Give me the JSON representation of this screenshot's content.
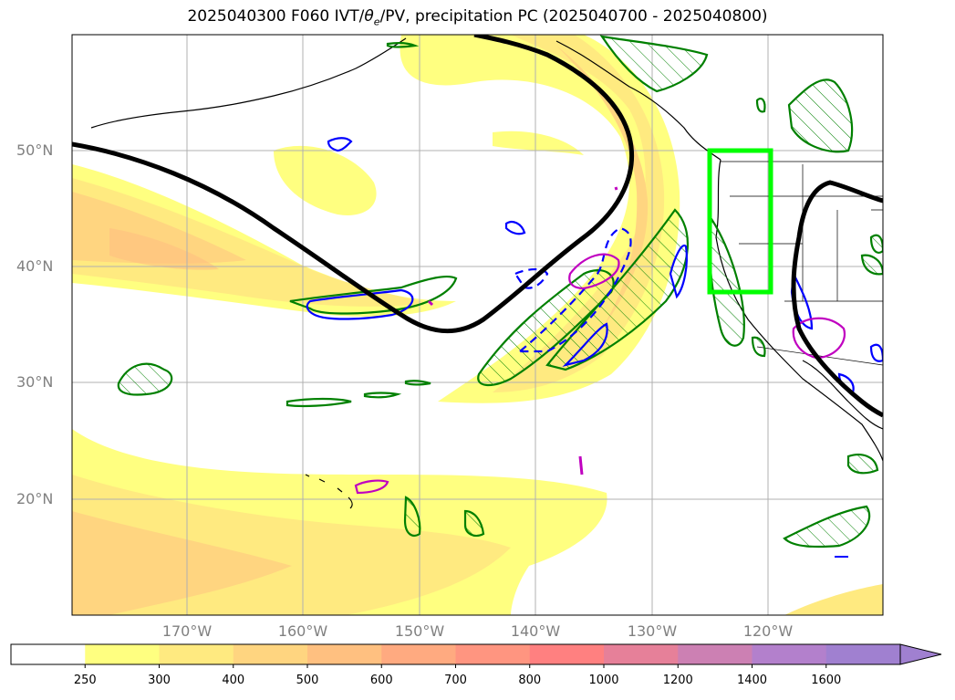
{
  "title": "2025040300 F060 IVT/θe/PV, precipitation PC (2025040700 - 2025040800)",
  "title_parts": {
    "prefix": "2025040300 F060 IVT/",
    "theta": "θ",
    "theta_sub": "e",
    "suffix": "/PV, precipitation PC (2025040700 - 2025040800)"
  },
  "lat_labels": [
    "50°N",
    "40°N",
    "30°N",
    "20°N"
  ],
  "lon_labels": [
    "170°W",
    "160°W",
    "150°W",
    "140°W",
    "130°W",
    "120°W"
  ],
  "colorbar": {
    "ticks": [
      "250",
      "300",
      "400",
      "500",
      "600",
      "700",
      "800",
      "1000",
      "1200",
      "1400",
      "1600"
    ],
    "colors": [
      "#ffffff",
      "#ffff80",
      "#ffea80",
      "#ffd580",
      "#ffc080",
      "#ffaa80",
      "#ff9580",
      "#ff8080",
      "#e68099",
      "#cc80b3",
      "#b380cc",
      "#a080d0"
    ],
    "extend": "max"
  },
  "map": {
    "lat_range": [
      10,
      60
    ],
    "lon_range": [
      -180,
      -110
    ],
    "box_color": "#00ff00",
    "box_bounds": {
      "lon": [
        -125,
        -120
      ],
      "lat": [
        38,
        50
      ]
    },
    "contour_colors": {
      "precip": "#008000",
      "theta": "#0000ff",
      "pv": "#c000c0",
      "ivt": "#000000"
    },
    "grid": true
  }
}
